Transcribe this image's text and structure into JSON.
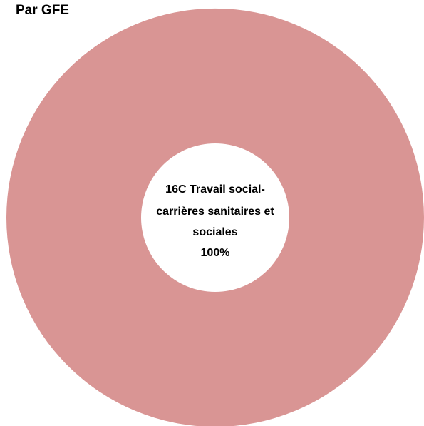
{
  "chart_data": {
    "type": "pie",
    "variant": "donut",
    "title": "Par GFE",
    "slices": [
      {
        "label_lines": [
          "16C Travail social-",
          "carrières sanitaires et",
          "sociales"
        ],
        "value": 100,
        "percent_label": "100%",
        "color": "#d99594"
      }
    ],
    "legend": "none"
  }
}
